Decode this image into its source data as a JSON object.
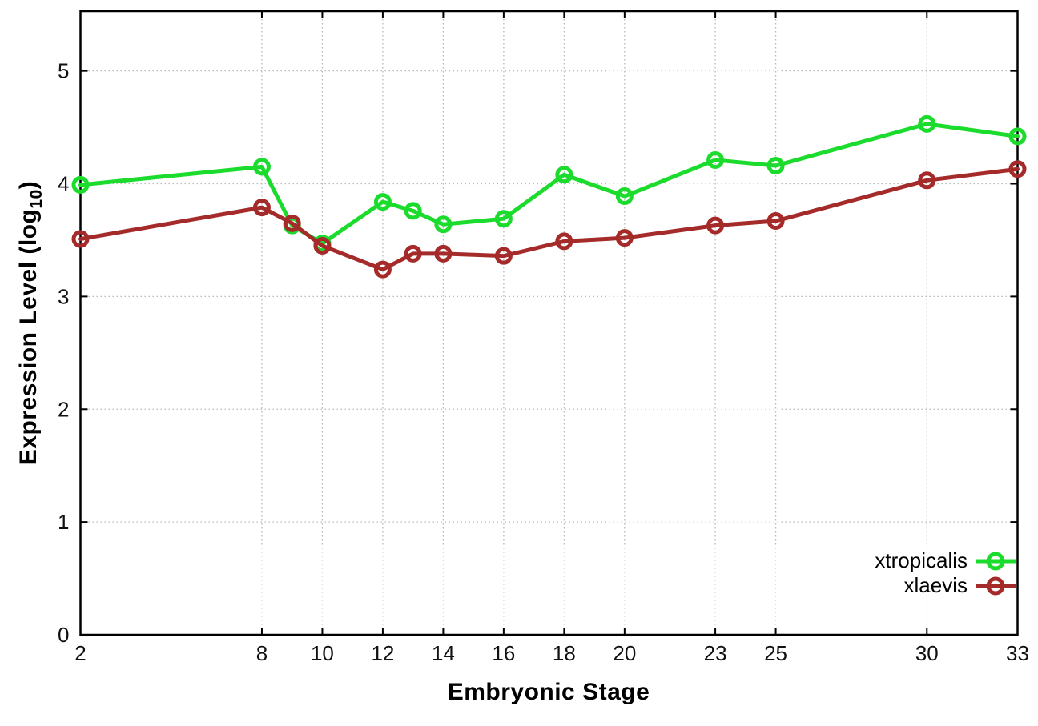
{
  "figure": {
    "xlabel": "Embryonic Stage",
    "ylabel_main": "Expression Level (log",
    "ylabel_sub": "10",
    "ylabel_close": ")"
  },
  "colors": {
    "background": "#ffffff",
    "axis": "#000000",
    "grid": "#b8b8b8",
    "tick_text": "#111111",
    "green_series": "#1bdc2c",
    "red_series": "#a52a2a"
  },
  "chart_data": {
    "type": "line",
    "title": "",
    "xlabel": "Embryonic Stage",
    "ylabel": "Expression Level (log10)",
    "x": [
      2,
      8,
      9,
      10,
      12,
      13,
      14,
      16,
      18,
      20,
      23,
      25,
      30,
      33
    ],
    "xticks": [
      2,
      8,
      10,
      12,
      14,
      16,
      18,
      20,
      23,
      25,
      30,
      33
    ],
    "yticks": [
      0,
      1,
      2,
      3,
      4,
      5
    ],
    "xlim": [
      2,
      33
    ],
    "ylim": [
      0,
      5.53
    ],
    "grid": true,
    "grid_style": "dotted",
    "legend_position": "inside-bottom-right",
    "marker": "open-circle",
    "series": [
      {
        "name": "xtropicalis",
        "color": "#1bdc2c",
        "values": [
          3.99,
          4.15,
          3.63,
          3.47,
          3.84,
          3.76,
          3.64,
          3.69,
          4.08,
          3.89,
          4.21,
          4.16,
          4.53,
          4.42
        ]
      },
      {
        "name": "xlaevis",
        "color": "#a52a2a",
        "values": [
          3.51,
          3.79,
          3.65,
          3.45,
          3.24,
          3.38,
          3.38,
          3.36,
          3.49,
          3.52,
          3.63,
          3.67,
          4.03,
          4.13
        ]
      }
    ]
  }
}
